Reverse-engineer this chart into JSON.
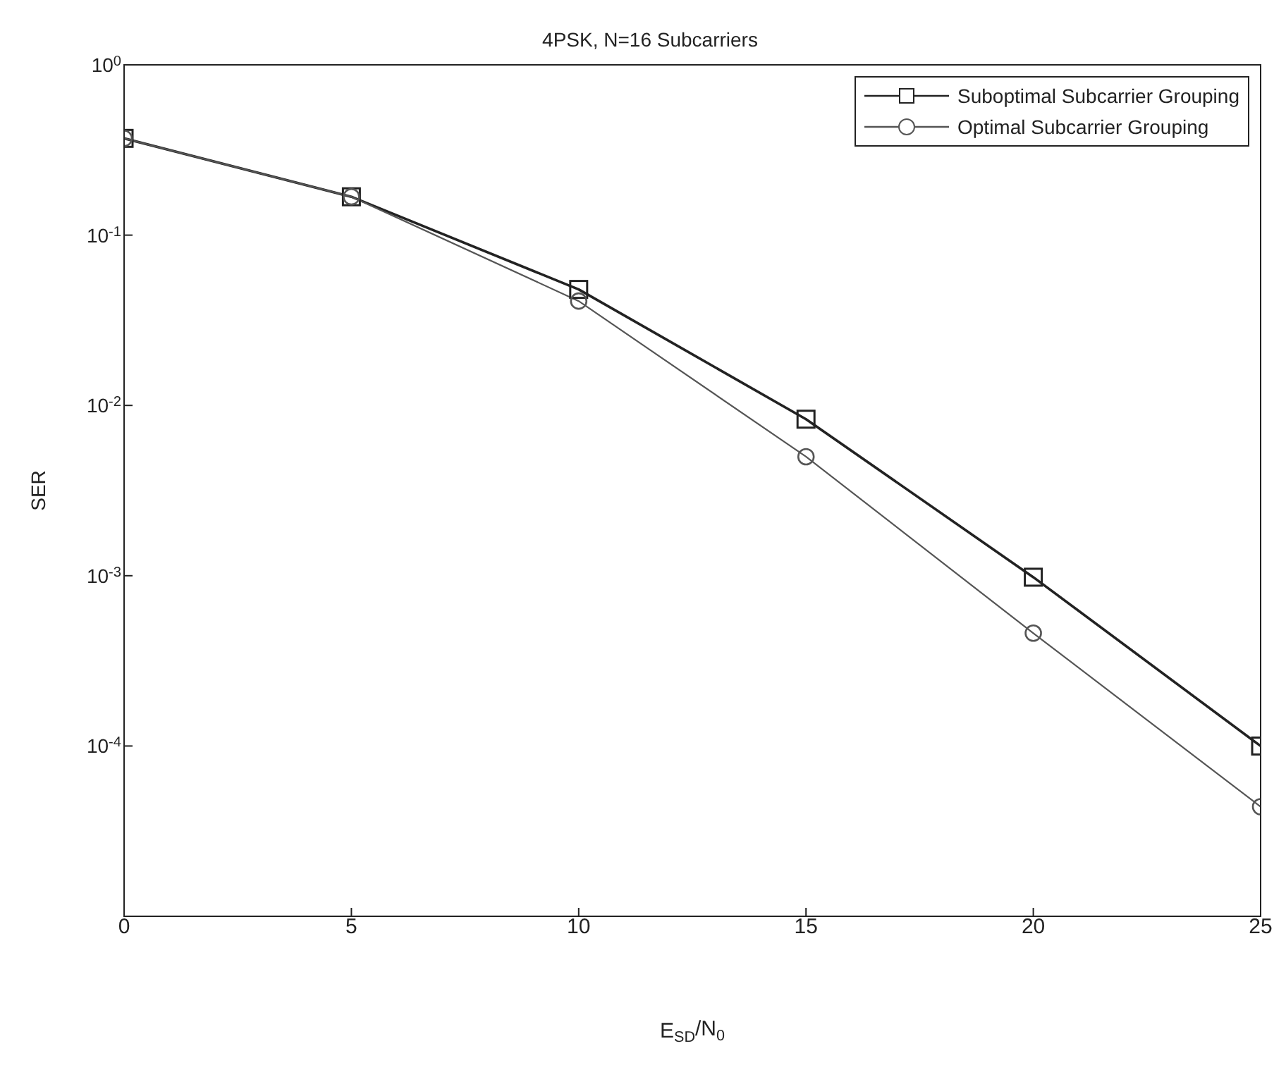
{
  "chart_data": {
    "type": "line",
    "title": "4PSK, N=16 Subcarriers",
    "xlabel": "E$_{SD}$/N$_{0}$",
    "ylabel": "SER",
    "x": [
      0,
      5,
      10,
      15,
      20,
      25
    ],
    "series": [
      {
        "name": "Suboptimal Subcarrier Grouping",
        "color": "#222222",
        "marker": "square",
        "values": [
          0.37,
          0.168,
          0.048,
          0.0083,
          0.00098,
          0.0001
        ]
      },
      {
        "name": "Optimal Subcarrier Grouping",
        "color": "#555555",
        "marker": "circle",
        "values": [
          0.37,
          0.168,
          0.041,
          0.005,
          0.00046,
          4.4e-05
        ]
      }
    ],
    "xlim": [
      0,
      25
    ],
    "xticks": [
      0,
      5,
      10,
      15,
      20,
      25
    ],
    "ylim": [
      1e-05,
      1
    ],
    "yticks": [
      {
        "value": 1,
        "label": "10$^{0}$"
      },
      {
        "value": 0.1,
        "label": "10$^{-1}$"
      },
      {
        "value": 0.01,
        "label": "10$^{-2}$"
      },
      {
        "value": 0.001,
        "label": "10$^{-3}$"
      },
      {
        "value": 0.0001,
        "label": "10$^{-4}$"
      },
      {
        "value": 1e-05,
        "label": null
      }
    ],
    "log": "y",
    "grid": false,
    "legend": "top right",
    "line_style": "solid"
  }
}
